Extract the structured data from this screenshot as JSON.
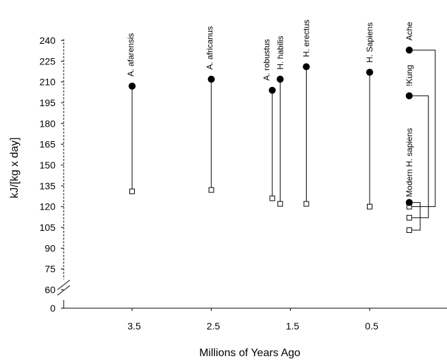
{
  "chart_data": {
    "type": "scatter",
    "title": "",
    "xlabel": "Millions of Years Ago",
    "ylabel": "kJ/[kg x day]",
    "x_reversed": true,
    "xlim": [
      4.2,
      -0.6
    ],
    "ylim": [
      60,
      240
    ],
    "y_axis_break": true,
    "x_ticks": [
      3.5,
      2.5,
      1.5,
      0.5
    ],
    "x_tick_labels": [
      "3.5",
      "2.5",
      "1.5",
      "0.5"
    ],
    "y_ticks": [
      0,
      60,
      75,
      90,
      105,
      120,
      135,
      150,
      165,
      180,
      195,
      210,
      225,
      240
    ],
    "y_tick_labels": [
      "0",
      "60",
      "75",
      "90",
      "105",
      "120",
      "135",
      "150",
      "165",
      "180",
      "195",
      "210",
      "225",
      "240"
    ],
    "grid": false,
    "legend": "none",
    "marker_styles": {
      "filled": "#000000",
      "open": "#ffffff"
    },
    "series": [
      {
        "name": "A. afarensis",
        "x": 3.5,
        "filled": 207,
        "open": 131
      },
      {
        "name": "A. africanus",
        "x": 2.5,
        "filled": 212,
        "open": 132
      },
      {
        "name": "A. robustus",
        "x": 1.73,
        "filled": 204,
        "open": 126
      },
      {
        "name": "H. habilis",
        "x": 1.63,
        "filled": 212,
        "open": 122
      },
      {
        "name": "H. erectus",
        "x": 1.3,
        "filled": 221,
        "open": 122
      },
      {
        "name": "H. Sapiens",
        "x": 0.5,
        "filled": 217,
        "open": 120
      },
      {
        "name": "Ache",
        "x": 0.0,
        "filled": 233,
        "open": 120
      },
      {
        "name": "!Kung",
        "x": 0.0,
        "filled": 200,
        "open": 112
      },
      {
        "name": "Modern H. sapiens",
        "x": 0.0,
        "filled": 123,
        "open": 103
      }
    ]
  }
}
